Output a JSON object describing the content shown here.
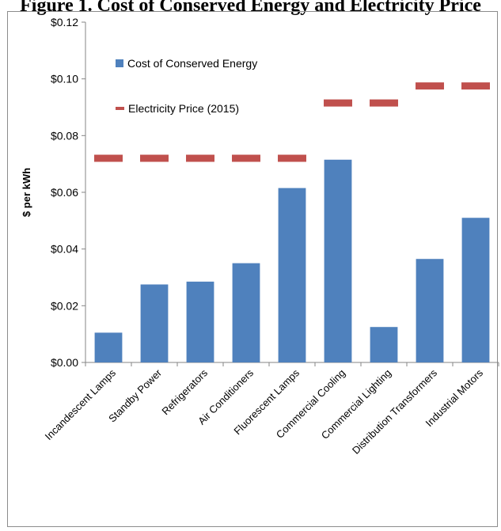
{
  "chart_data": {
    "type": "bar",
    "title": "Figure 1. Cost of Conserved Energy and Electricity Price",
    "xlabel": "",
    "ylabel": "$ per kWh",
    "ylim": [
      0,
      0.12
    ],
    "yticks": [
      0.0,
      0.02,
      0.04,
      0.06,
      0.08,
      0.1,
      0.12
    ],
    "ytick_labels": [
      "$0.00",
      "$0.02",
      "$0.04",
      "$0.06",
      "$0.08",
      "$0.10",
      "$0.12"
    ],
    "categories": [
      "Incandescent Lamps",
      "Standby Power",
      "Refrigerators",
      "Air Conditioners",
      "Fluorescent Lamps",
      "Commercial Cooling",
      "Commercial Lighting",
      "Distribution Transformers",
      "Industrial Motors"
    ],
    "series": [
      {
        "name": "Cost of Conserved Energy",
        "type": "bar",
        "color": "#4f81bd",
        "values": [
          0.0105,
          0.0275,
          0.0285,
          0.035,
          0.0615,
          0.0715,
          0.0125,
          0.0365,
          0.051
        ]
      },
      {
        "name": "Electricity Price (2015)",
        "type": "marker",
        "color": "#c0504d",
        "values": [
          0.072,
          0.072,
          0.072,
          0.072,
          0.072,
          0.0915,
          0.0915,
          0.0975,
          0.0975
        ]
      }
    ],
    "legend_position": "top-left",
    "grid": false
  }
}
